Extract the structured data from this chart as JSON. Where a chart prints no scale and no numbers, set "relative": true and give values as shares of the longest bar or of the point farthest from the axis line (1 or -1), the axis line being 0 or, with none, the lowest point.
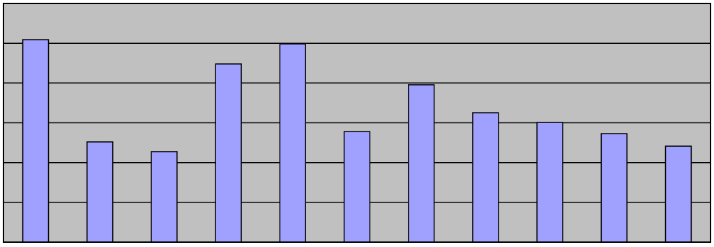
{
  "chart_data": {
    "type": "bar",
    "relative": true,
    "grid": "y",
    "categories": [
      null,
      null,
      null,
      null,
      null,
      null,
      null,
      null,
      null,
      null,
      null
    ],
    "values": [
      1,
      0.495,
      0.447,
      0.88,
      0.979,
      0.546,
      0.777,
      0.639,
      0.591,
      0.536,
      0.474
    ],
    "color": "#a0a0ff"
  }
}
